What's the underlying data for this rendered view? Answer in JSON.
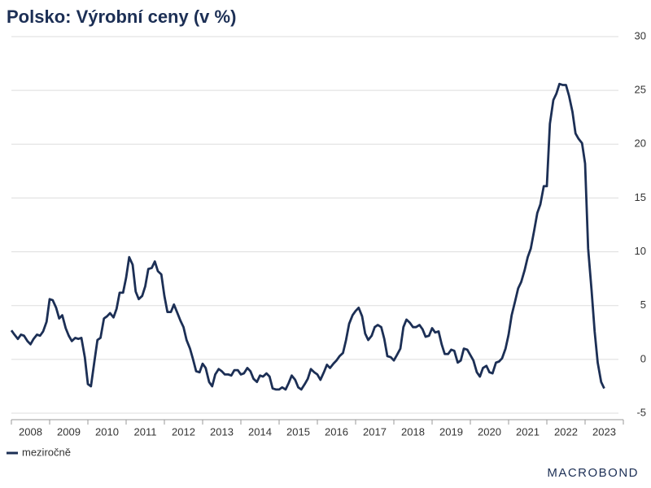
{
  "chart_data": {
    "type": "line",
    "title": "Polsko: Výrobní ceny (v %)",
    "xlim": [
      2008,
      2024
    ],
    "xticks": [
      2008,
      2009,
      2010,
      2011,
      2012,
      2013,
      2014,
      2015,
      2016,
      2017,
      2018,
      2019,
      2020,
      2021,
      2022,
      2023
    ],
    "ylim": [
      -5,
      30
    ],
    "yticks": [
      -5,
      0,
      5,
      10,
      15,
      20,
      25,
      30
    ],
    "grid": true,
    "legend": "bottom-left",
    "x": [
      2008.0,
      2008.08,
      2008.17,
      2008.25,
      2008.33,
      2008.42,
      2008.5,
      2008.58,
      2008.67,
      2008.75,
      2008.83,
      2008.92,
      2009.0,
      2009.08,
      2009.17,
      2009.25,
      2009.33,
      2009.42,
      2009.5,
      2009.58,
      2009.67,
      2009.75,
      2009.83,
      2009.92,
      2010.0,
      2010.08,
      2010.17,
      2010.25,
      2010.33,
      2010.42,
      2010.5,
      2010.58,
      2010.67,
      2010.75,
      2010.83,
      2010.92,
      2011.0,
      2011.08,
      2011.17,
      2011.25,
      2011.33,
      2011.42,
      2011.5,
      2011.58,
      2011.67,
      2011.75,
      2011.83,
      2011.92,
      2012.0,
      2012.08,
      2012.17,
      2012.25,
      2012.33,
      2012.42,
      2012.5,
      2012.58,
      2012.67,
      2012.75,
      2012.83,
      2012.92,
      2013.0,
      2013.08,
      2013.17,
      2013.25,
      2013.33,
      2013.42,
      2013.5,
      2013.58,
      2013.67,
      2013.75,
      2013.83,
      2013.92,
      2014.0,
      2014.08,
      2014.17,
      2014.25,
      2014.33,
      2014.42,
      2014.5,
      2014.58,
      2014.67,
      2014.75,
      2014.83,
      2014.92,
      2015.0,
      2015.08,
      2015.17,
      2015.25,
      2015.33,
      2015.42,
      2015.5,
      2015.58,
      2015.67,
      2015.75,
      2015.83,
      2015.92,
      2016.0,
      2016.08,
      2016.17,
      2016.25,
      2016.33,
      2016.42,
      2016.5,
      2016.58,
      2016.67,
      2016.75,
      2016.83,
      2016.92,
      2017.0,
      2017.08,
      2017.17,
      2017.25,
      2017.33,
      2017.42,
      2017.5,
      2017.58,
      2017.67,
      2017.75,
      2017.83,
      2017.92,
      2018.0,
      2018.08,
      2018.17,
      2018.25,
      2018.33,
      2018.42,
      2018.5,
      2018.58,
      2018.67,
      2018.75,
      2018.83,
      2018.92,
      2019.0,
      2019.08,
      2019.17,
      2019.25,
      2019.33,
      2019.42,
      2019.5,
      2019.58,
      2019.67,
      2019.75,
      2019.83,
      2019.92,
      2020.0,
      2020.08,
      2020.17,
      2020.25,
      2020.33,
      2020.42,
      2020.5,
      2020.58,
      2020.67,
      2020.75,
      2020.83,
      2020.92,
      2021.0,
      2021.08,
      2021.17,
      2021.25,
      2021.33,
      2021.42,
      2021.5,
      2021.58,
      2021.67,
      2021.75,
      2021.83,
      2021.92,
      2022.0,
      2022.08,
      2022.17,
      2022.25,
      2022.33,
      2022.42,
      2022.5,
      2022.58,
      2022.67,
      2022.75,
      2022.83,
      2022.92,
      2023.0,
      2023.08,
      2023.17,
      2023.25,
      2023.33,
      2023.42,
      2023.5
    ],
    "series": [
      {
        "name": "meziročně",
        "color": "#1c2f55",
        "values": [
          2.7,
          2.3,
          1.9,
          2.3,
          2.2,
          1.7,
          1.4,
          1.9,
          2.3,
          2.2,
          2.6,
          3.5,
          5.6,
          5.5,
          4.8,
          3.8,
          4.1,
          2.9,
          2.2,
          1.7,
          2.0,
          1.9,
          2.0,
          0.2,
          -2.3,
          -2.5,
          -0.2,
          1.8,
          2.0,
          3.8,
          4.0,
          4.3,
          3.9,
          4.7,
          6.2,
          6.2,
          7.6,
          9.5,
          8.8,
          6.3,
          5.6,
          5.9,
          6.8,
          8.4,
          8.5,
          9.1,
          8.2,
          7.9,
          5.9,
          4.4,
          4.4,
          5.1,
          4.4,
          3.6,
          3.0,
          1.8,
          1.0,
          0,
          -1.1,
          -1.2,
          -0.4,
          -0.8,
          -2.1,
          -2.5,
          -1.4,
          -0.9,
          -1.1,
          -1.4,
          -1.4,
          -1.5,
          -1.0,
          -1.0,
          -1.4,
          -1.3,
          -0.8,
          -1.1,
          -1.8,
          -2.1,
          -1.5,
          -1.6,
          -1.3,
          -1.6,
          -2.7,
          -2.8,
          -2.8,
          -2.6,
          -2.8,
          -2.2,
          -1.5,
          -1.9,
          -2.6,
          -2.8,
          -2.3,
          -1.8,
          -0.9,
          -1.2,
          -1.4,
          -1.9,
          -1.2,
          -0.5,
          -0.8,
          -0.4,
          -0.1,
          0.3,
          0.6,
          1.8,
          3.3,
          4.1,
          4.5,
          4.8,
          4.0,
          2.4,
          1.8,
          2.2,
          3.0,
          3.2,
          3.0,
          1.9,
          0.3,
          0.2,
          -0.1,
          0.4,
          1.0,
          3.0,
          3.7,
          3.4,
          3.0,
          3.0,
          3.2,
          2.8,
          2.1,
          2.2,
          2.9,
          2.5,
          2.6,
          1.4,
          0.5,
          0.5,
          0.9,
          0.8,
          -0.3,
          -0.1,
          1.0,
          0.9,
          0.4,
          -0.1,
          -1.2,
          -1.6,
          -0.8,
          -0.6,
          -1.2,
          -1.3,
          -0.3,
          -0.2,
          0.1,
          1.0,
          2.3,
          4.1,
          5.4,
          6.6,
          7.2,
          8.3,
          9.5,
          10.3,
          12.0,
          13.6,
          14.4,
          16.1,
          16.1,
          21.9,
          24.1,
          24.7,
          25.6,
          25.5,
          25.5,
          24.5,
          23.0,
          21.0,
          20.5,
          20.1,
          18.2,
          10.3,
          6.4,
          2.6,
          -0.3,
          -2.1,
          -2.7
        ]
      }
    ],
    "logo": "MACROBOND"
  }
}
